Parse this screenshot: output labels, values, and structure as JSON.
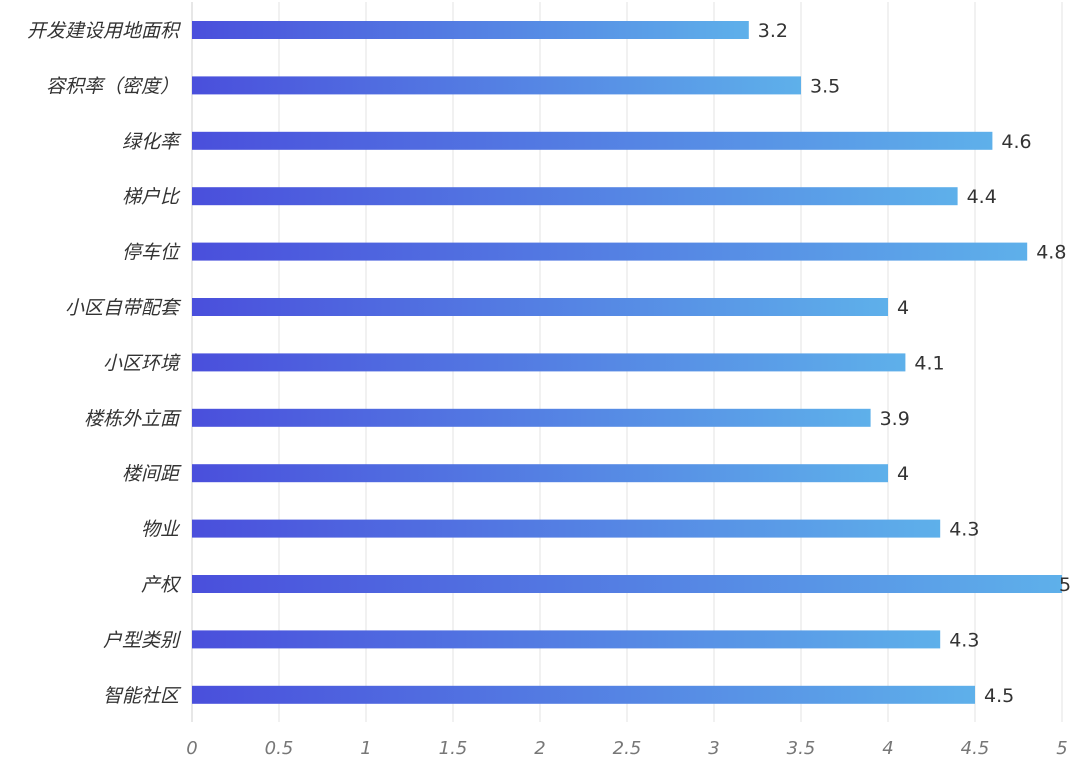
{
  "chart_data": {
    "type": "bar",
    "orientation": "horizontal",
    "categories": [
      "开发建设用地面积",
      "容积率（密度）",
      "绿化率",
      "梯户比",
      "停车位",
      "小区自带配套",
      "小区环境",
      "楼栋外立面",
      "楼间距",
      "物业",
      "产权",
      "户型类别",
      "智能社区"
    ],
    "values": [
      3.2,
      3.5,
      4.6,
      4.4,
      4.8,
      4,
      4.1,
      3.9,
      4,
      4.3,
      5,
      4.3,
      4.5
    ],
    "xlim": [
      0,
      5
    ],
    "x_ticks": [
      "0",
      "0.5",
      "1",
      "1.5",
      "2",
      "2.5",
      "3",
      "3.5",
      "4",
      "4.5",
      "5"
    ],
    "grid": true,
    "legend": "none",
    "colors": {
      "bar_gradient_start": "#4a4fdc",
      "bar_gradient_end": "#5eb0ea",
      "grid": "#e3e3e3"
    }
  }
}
